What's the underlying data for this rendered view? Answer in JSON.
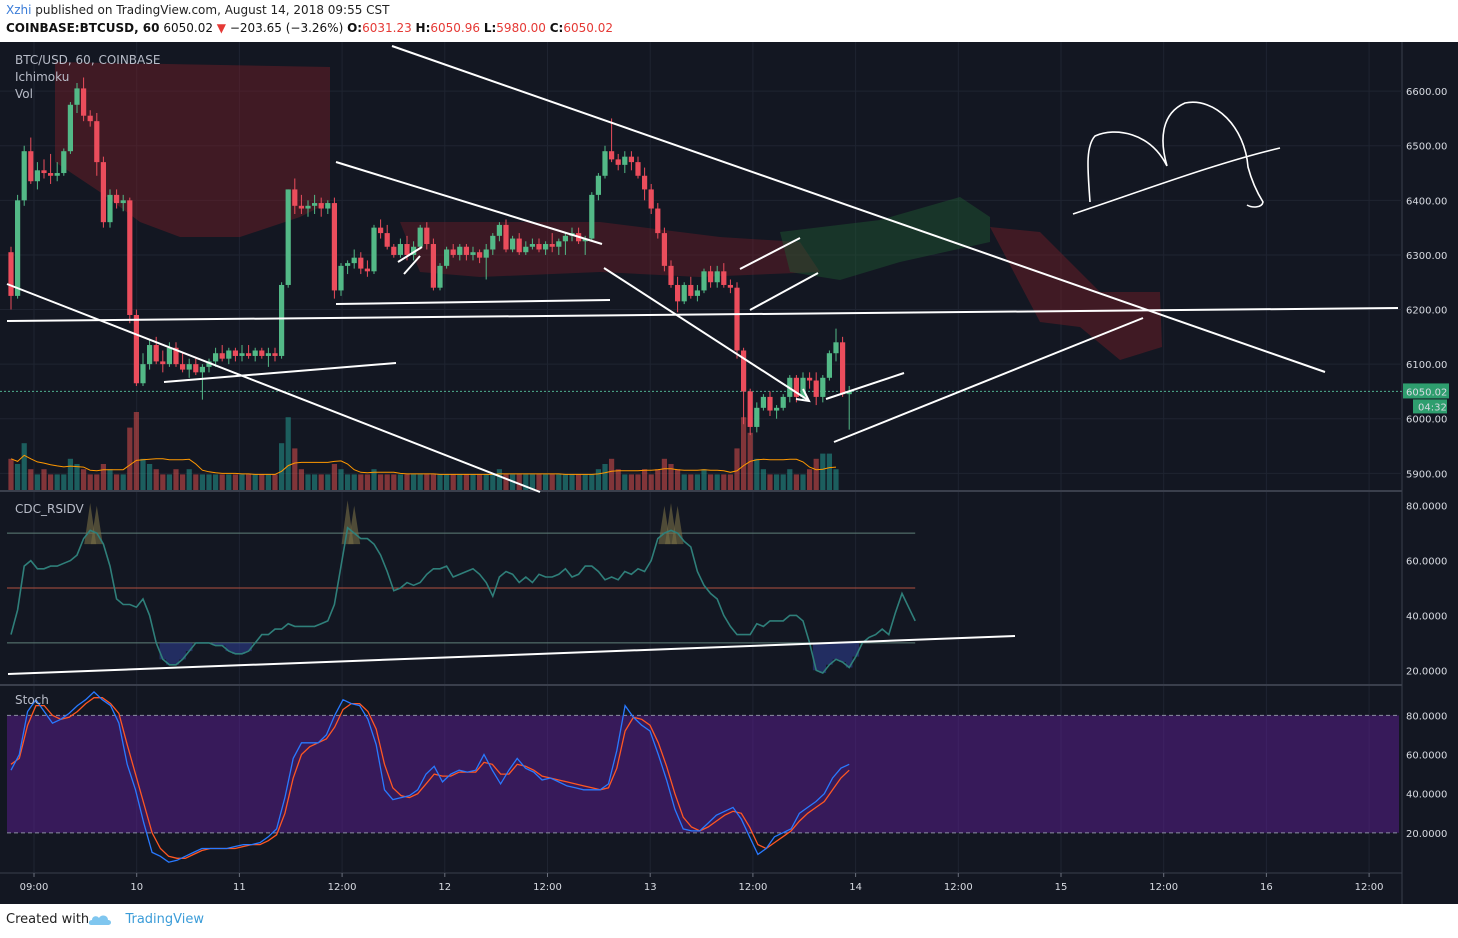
{
  "header": {
    "author": "Xzhi",
    "published": "published on TradingView.com, August 14, 2018 09:55 CST",
    "symbol": "COINBASE:BTCUSD, 60",
    "last": "6050.02",
    "change_arrow": "▼",
    "change": "−203.65 (−3.26%)",
    "o_label": "O:",
    "o": "6031.23",
    "h_label": "H:",
    "h": "6050.96",
    "l_label": "L:",
    "l": "5980.00",
    "c_label": "C:",
    "c": "6050.02"
  },
  "footer": {
    "created_with": "Created with",
    "brand": "TradingView"
  },
  "chart_data": {
    "type": "candlestick",
    "title": "BTC/USD, 60, COINBASE",
    "panes": {
      "price": {
        "indicator_labels": [
          "Ichimoku",
          "Vol"
        ],
        "ylim": [
          5850,
          6690
        ],
        "ticks": [
          5900,
          6000,
          6100,
          6200,
          6300,
          6400,
          6500,
          6600
        ],
        "tick_labels": [
          "5900.00",
          "6000.00",
          "6100.00",
          "6200.00",
          "6300.00",
          "6400.00",
          "6500.00",
          "6600.00"
        ],
        "last_price_label": "6050.02",
        "countdown_label": "04:32",
        "last_price": 6050.02,
        "volume_ma_color": "#ff9800"
      },
      "rsi": {
        "label": "CDC_RSIDV",
        "ylim": [
          15,
          85
        ],
        "ticks": [
          20,
          40,
          60,
          80
        ],
        "tick_labels": [
          "20.0000",
          "40.0000",
          "60.0000",
          "80.0000"
        ],
        "levels": [
          70,
          50,
          30
        ],
        "values": [
          33,
          42,
          58,
          60,
          57,
          57,
          58,
          58,
          59,
          60,
          62,
          68,
          71,
          70,
          66,
          58,
          46,
          44,
          44,
          43,
          46,
          40,
          30,
          24,
          22,
          22,
          24,
          27,
          30,
          30,
          30,
          29,
          29,
          27,
          26,
          26,
          27,
          30,
          33,
          33,
          35,
          35,
          37,
          36,
          36,
          36,
          36,
          37,
          38,
          44,
          58,
          72,
          70,
          68,
          68,
          66,
          62,
          56,
          49,
          50,
          52,
          51,
          52,
          55,
          57,
          57,
          58,
          54,
          55,
          56,
          57,
          55,
          52,
          47,
          54,
          56,
          55,
          52,
          54,
          52,
          55,
          54,
          54,
          55,
          57,
          54,
          55,
          58,
          58,
          56,
          53,
          54,
          53,
          56,
          55,
          57,
          56,
          60,
          68,
          70,
          71,
          70,
          67,
          65,
          56,
          51,
          48,
          46,
          40,
          36,
          33,
          33,
          33,
          37,
          36,
          38,
          38,
          38,
          40,
          40,
          38,
          30,
          20,
          19,
          22,
          24,
          23,
          21,
          25,
          30,
          32,
          33,
          35,
          33,
          41,
          48,
          43,
          38
        ]
      },
      "stoch": {
        "label": "Stoch",
        "ylim": [
          0,
          95
        ],
        "band": [
          20,
          80
        ],
        "ticks": [
          20,
          40,
          60,
          80
        ],
        "tick_labels": [
          "20.0000",
          "40.0000",
          "60.0000",
          "80.0000"
        ],
        "k_color": "#2979ff",
        "d_color": "#ff5722"
      }
    },
    "x_tick_labels": [
      "09:00",
      "10",
      "11",
      "12:00",
      "12",
      "12:00",
      "13",
      "12:00",
      "14",
      "12:00",
      "15",
      "12:00",
      "16",
      "12:00"
    ],
    "candles": [
      [
        6305,
        6315,
        6200,
        6225
      ],
      [
        6225,
        6410,
        6220,
        6400
      ],
      [
        6400,
        6500,
        6390,
        6490
      ],
      [
        6490,
        6515,
        6430,
        6435
      ],
      [
        6435,
        6470,
        6420,
        6455
      ],
      [
        6455,
        6475,
        6440,
        6450
      ],
      [
        6450,
        6485,
        6430,
        6445
      ],
      [
        6445,
        6470,
        6435,
        6450
      ],
      [
        6450,
        6495,
        6445,
        6490
      ],
      [
        6490,
        6580,
        6485,
        6575
      ],
      [
        6575,
        6615,
        6560,
        6605
      ],
      [
        6605,
        6625,
        6545,
        6555
      ],
      [
        6555,
        6565,
        6535,
        6545
      ],
      [
        6545,
        6560,
        6445,
        6470
      ],
      [
        6470,
        6480,
        6350,
        6360
      ],
      [
        6360,
        6420,
        6350,
        6410
      ],
      [
        6410,
        6420,
        6385,
        6395
      ],
      [
        6395,
        6410,
        6380,
        6400
      ],
      [
        6400,
        6405,
        6175,
        6190
      ],
      [
        6190,
        6200,
        6060,
        6065
      ],
      [
        6065,
        6120,
        6060,
        6100
      ],
      [
        6100,
        6145,
        6090,
        6135
      ],
      [
        6135,
        6150,
        6100,
        6105
      ],
      [
        6105,
        6125,
        6085,
        6100
      ],
      [
        6100,
        6140,
        6095,
        6130
      ],
      [
        6130,
        6140,
        6095,
        6100
      ],
      [
        6100,
        6120,
        6085,
        6090
      ],
      [
        6090,
        6110,
        6075,
        6100
      ],
      [
        6100,
        6110,
        6080,
        6085
      ],
      [
        6085,
        6100,
        6035,
        6095
      ],
      [
        6095,
        6110,
        6085,
        6105
      ],
      [
        6105,
        6130,
        6095,
        6120
      ],
      [
        6120,
        6135,
        6105,
        6110
      ],
      [
        6110,
        6130,
        6100,
        6125
      ],
      [
        6125,
        6130,
        6105,
        6115
      ],
      [
        6115,
        6135,
        6105,
        6120
      ],
      [
        6120,
        6135,
        6110,
        6115
      ],
      [
        6115,
        6130,
        6105,
        6125
      ],
      [
        6125,
        6130,
        6110,
        6115
      ],
      [
        6115,
        6130,
        6095,
        6120
      ],
      [
        6120,
        6130,
        6105,
        6115
      ],
      [
        6115,
        6250,
        6110,
        6245
      ],
      [
        6245,
        6420,
        6240,
        6420
      ],
      [
        6420,
        6440,
        6375,
        6390
      ],
      [
        6390,
        6410,
        6375,
        6385
      ],
      [
        6385,
        6400,
        6370,
        6390
      ],
      [
        6390,
        6410,
        6375,
        6395
      ],
      [
        6395,
        6405,
        6370,
        6385
      ],
      [
        6385,
        6400,
        6375,
        6395
      ],
      [
        6395,
        6405,
        6220,
        6235
      ],
      [
        6235,
        6285,
        6225,
        6280
      ],
      [
        6280,
        6290,
        6265,
        6285
      ],
      [
        6285,
        6310,
        6275,
        6295
      ],
      [
        6295,
        6305,
        6265,
        6275
      ],
      [
        6275,
        6290,
        6260,
        6270
      ],
      [
        6270,
        6355,
        6265,
        6350
      ],
      [
        6350,
        6365,
        6330,
        6340
      ],
      [
        6340,
        6355,
        6310,
        6315
      ],
      [
        6315,
        6320,
        6295,
        6300
      ],
      [
        6300,
        6330,
        6295,
        6320
      ],
      [
        6320,
        6335,
        6290,
        6300
      ],
      [
        6300,
        6325,
        6290,
        6315
      ],
      [
        6315,
        6355,
        6310,
        6350
      ],
      [
        6350,
        6360,
        6310,
        6320
      ],
      [
        6320,
        6330,
        6235,
        6240
      ],
      [
        6240,
        6285,
        6235,
        6280
      ],
      [
        6280,
        6315,
        6275,
        6310
      ],
      [
        6310,
        6320,
        6295,
        6300
      ],
      [
        6300,
        6320,
        6290,
        6315
      ],
      [
        6315,
        6320,
        6290,
        6300
      ],
      [
        6300,
        6315,
        6290,
        6305
      ],
      [
        6305,
        6310,
        6285,
        6295
      ],
      [
        6295,
        6320,
        6255,
        6310
      ],
      [
        6310,
        6340,
        6300,
        6335
      ],
      [
        6335,
        6360,
        6325,
        6355
      ],
      [
        6355,
        6365,
        6305,
        6310
      ],
      [
        6310,
        6335,
        6305,
        6330
      ],
      [
        6330,
        6340,
        6300,
        6305
      ],
      [
        6305,
        6325,
        6300,
        6315
      ],
      [
        6315,
        6330,
        6310,
        6320
      ],
      [
        6320,
        6330,
        6305,
        6310
      ],
      [
        6310,
        6325,
        6300,
        6320
      ],
      [
        6320,
        6340,
        6305,
        6315
      ],
      [
        6315,
        6330,
        6300,
        6325
      ],
      [
        6325,
        6340,
        6300,
        6335
      ],
      [
        6335,
        6350,
        6325,
        6340
      ],
      [
        6340,
        6350,
        6320,
        6325
      ],
      [
        6325,
        6335,
        6300,
        6330
      ],
      [
        6330,
        6415,
        6325,
        6410
      ],
      [
        6410,
        6450,
        6400,
        6445
      ],
      [
        6445,
        6500,
        6440,
        6490
      ],
      [
        6490,
        6550,
        6470,
        6475
      ],
      [
        6475,
        6485,
        6455,
        6465
      ],
      [
        6465,
        6490,
        6450,
        6480
      ],
      [
        6480,
        6490,
        6455,
        6470
      ],
      [
        6470,
        6480,
        6440,
        6445
      ],
      [
        6445,
        6460,
        6400,
        6420
      ],
      [
        6420,
        6430,
        6375,
        6385
      ],
      [
        6385,
        6395,
        6330,
        6340
      ],
      [
        6340,
        6350,
        6270,
        6280
      ],
      [
        6280,
        6290,
        6240,
        6245
      ],
      [
        6245,
        6260,
        6195,
        6215
      ],
      [
        6215,
        6250,
        6210,
        6245
      ],
      [
        6245,
        6260,
        6220,
        6225
      ],
      [
        6225,
        6245,
        6215,
        6235
      ],
      [
        6235,
        6275,
        6230,
        6270
      ],
      [
        6270,
        6280,
        6240,
        6250
      ],
      [
        6250,
        6280,
        6240,
        6270
      ],
      [
        6270,
        6285,
        6240,
        6245
      ],
      [
        6245,
        6255,
        6230,
        6240
      ],
      [
        6240,
        6250,
        6110,
        6125
      ],
      [
        6125,
        6130,
        5990,
        6050
      ],
      [
        6050,
        6055,
        5970,
        5985
      ],
      [
        5985,
        6030,
        5975,
        6020
      ],
      [
        6020,
        6045,
        6015,
        6040
      ],
      [
        6040,
        6050,
        6005,
        6015
      ],
      [
        6015,
        6025,
        6000,
        6020
      ],
      [
        6020,
        6045,
        6015,
        6040
      ],
      [
        6040,
        6080,
        6030,
        6075
      ],
      [
        6075,
        6080,
        6030,
        6040
      ],
      [
        6040,
        6085,
        6035,
        6075
      ],
      [
        6075,
        6085,
        6055,
        6070
      ],
      [
        6070,
        6085,
        6025,
        6040
      ],
      [
        6040,
        6080,
        6030,
        6075
      ],
      [
        6075,
        6125,
        6070,
        6120
      ],
      [
        6120,
        6165,
        6105,
        6140
      ],
      [
        6140,
        6150,
        6040,
        6045
      ],
      [
        6045,
        6060,
        5980,
        6050
      ]
    ],
    "volume": [
      6,
      5,
      9,
      4,
      3,
      4,
      3,
      3,
      3,
      6,
      5,
      4,
      3,
      3,
      5,
      4,
      3,
      3,
      12,
      15,
      6,
      5,
      4,
      3,
      3,
      4,
      3,
      4,
      3,
      3,
      3,
      3,
      3,
      3,
      3,
      3,
      3,
      3,
      3,
      3,
      3,
      9,
      14,
      8,
      4,
      3,
      3,
      3,
      3,
      5,
      4,
      3,
      3,
      3,
      3,
      4,
      3,
      3,
      3,
      3,
      3,
      3,
      3,
      3,
      3,
      3,
      3,
      3,
      3,
      3,
      3,
      3,
      3,
      3,
      4,
      3,
      3,
      3,
      3,
      3,
      3,
      3,
      3,
      3,
      3,
      3,
      3,
      3,
      3,
      4,
      5,
      6,
      4,
      3,
      3,
      3,
      4,
      3,
      4,
      6,
      5,
      4,
      3,
      3,
      3,
      4,
      3,
      3,
      3,
      3,
      8,
      14,
      11,
      6,
      4,
      3,
      3,
      3,
      4,
      3,
      3,
      4,
      6,
      7,
      7,
      4
    ],
    "stoch_k": [
      52,
      60,
      82,
      88,
      82,
      76,
      78,
      81,
      85,
      88,
      92,
      88,
      85,
      76,
      55,
      42,
      25,
      10,
      8,
      5,
      6,
      8,
      10,
      12,
      12,
      12,
      12,
      13,
      14,
      14,
      15,
      18,
      22,
      38,
      58,
      66,
      66,
      66,
      70,
      80,
      88,
      86,
      85,
      78,
      65,
      42,
      37,
      38,
      39,
      42,
      50,
      54,
      46,
      50,
      52,
      51,
      52,
      60,
      52,
      45,
      52,
      58,
      53,
      51,
      47,
      48,
      46,
      44,
      43,
      42,
      42,
      42,
      45,
      62,
      85,
      79,
      75,
      72,
      60,
      47,
      32,
      22,
      21,
      21,
      25,
      29,
      31,
      33,
      27,
      18,
      9,
      12,
      18,
      20,
      22,
      30,
      33,
      36,
      40,
      48,
      53,
      55
    ],
    "stoch_d": [
      55,
      58,
      75,
      85,
      85,
      80,
      78,
      79,
      82,
      86,
      89,
      89,
      86,
      81,
      65,
      50,
      35,
      20,
      12,
      8,
      7,
      7,
      9,
      11,
      12,
      12,
      12,
      12,
      13,
      14,
      14,
      16,
      19,
      30,
      48,
      60,
      64,
      66,
      68,
      74,
      83,
      86,
      86,
      82,
      73,
      55,
      43,
      39,
      38,
      40,
      45,
      50,
      49,
      49,
      51,
      51,
      51,
      56,
      55,
      50,
      50,
      55,
      54,
      52,
      49,
      48,
      47,
      46,
      45,
      44,
      43,
      42,
      43,
      53,
      72,
      79,
      78,
      75,
      66,
      54,
      40,
      28,
      23,
      21,
      23,
      26,
      29,
      31,
      30,
      23,
      14,
      12,
      15,
      18,
      21,
      26,
      30,
      33,
      36,
      42,
      48,
      52
    ]
  }
}
